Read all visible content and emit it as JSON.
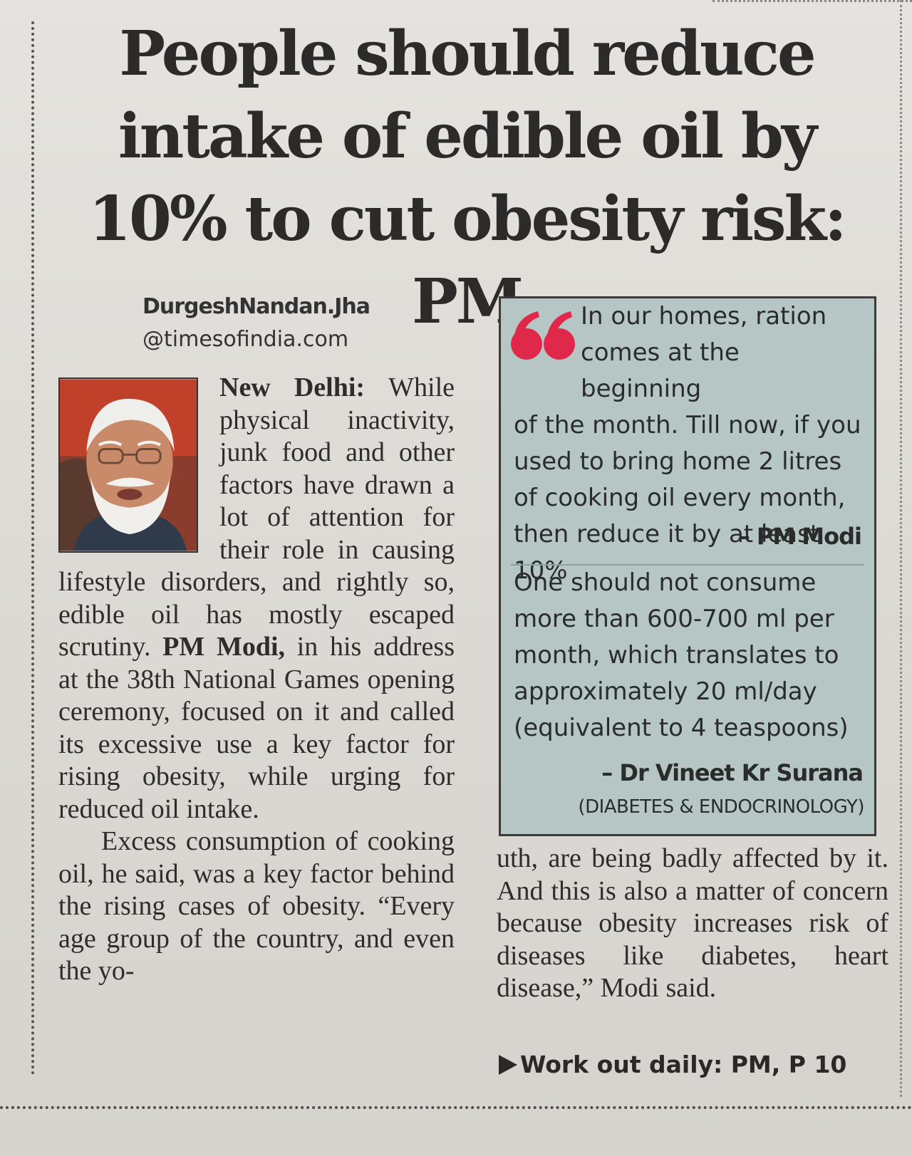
{
  "headline": "People should reduce intake of edible oil by 10% to cut obesity risk: PM",
  "byline": {
    "author": "DurgeshNandan.Jha",
    "handle": "@timesofindia.com"
  },
  "article": {
    "dateline": "New Delhi:",
    "para1_part1": "While physical inactivity, junk food and other factors have drawn a lot of attention for their role in causing lifestyle disorders, and rightly so, edible oil has mostly escaped scrutiny.",
    "para1_bold": "PM Modi,",
    "para1_part2": "in his address at the 38th National Games opening ceremony, focused on it and called its excessive use a key factor for rising obesity, while urging for reduced oil intake.",
    "para2_col1": "Excess consumption of cooking oil, he said, was a key factor behind the rising cases of obesity. “Every age group of the country, and even the yo-",
    "para2_col2": "uth, are being badly affected by it. And this is also a matter of concern because obesity increases risk of diseases like diabetes, heart disease,” Modi said."
  },
  "quote_box": {
    "quote1_line1": "In our homes, ration",
    "quote1_line2": "comes at the beginning",
    "quote1_rest": "of the month. Till now, if you used to bring home 2 litres of cooking oil every month, then reduce it by at least 10%",
    "attribution1": "– PM Modi",
    "quote2": "One should not consume more than 600-700 ml per month, which translates to approximately 20 ml/day (equivalent to 4 teaspoons)",
    "attribution2": "– Dr Vineet Kr Surana",
    "attribution2_sub": "(DIABETES & ENDOCRINOLOGY)"
  },
  "continuation": "Work out daily: PM, P 10",
  "colors": {
    "quote_mark": "#e0284a",
    "box_background": "#b6c6c4"
  }
}
